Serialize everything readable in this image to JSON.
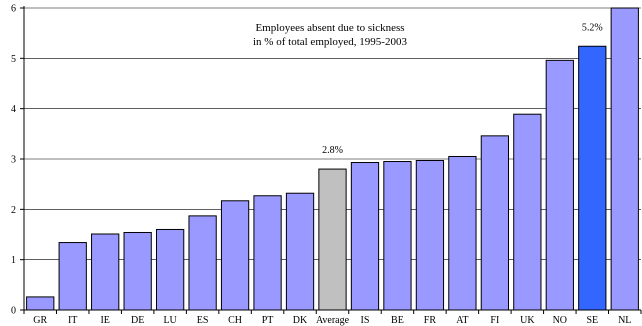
{
  "chart_data": {
    "type": "bar",
    "title": "Employees absent due to sickness",
    "subtitle": "in % of total employed, 1995-2003",
    "xlabel": "",
    "ylabel": "",
    "ylim": [
      0,
      6
    ],
    "yticks": [
      "0",
      "1",
      "2",
      "3",
      "4",
      "5",
      "6"
    ],
    "grid": true,
    "categories": [
      "GR",
      "IT",
      "IE",
      "DE",
      "LU",
      "ES",
      "CH",
      "PT",
      "DK",
      "Average",
      "IS",
      "BE",
      "FR",
      "AT",
      "FI",
      "UK",
      "NO",
      "SE",
      "NL"
    ],
    "values": [
      0.26,
      1.34,
      1.51,
      1.54,
      1.6,
      1.87,
      2.17,
      2.27,
      2.32,
      2.8,
      2.93,
      2.95,
      2.97,
      3.05,
      3.46,
      3.89,
      4.96,
      5.24,
      6.0
    ],
    "highlight": {
      "Average": "#c0c0c0",
      "SE": "#3366ff"
    },
    "default_color": "#9999ff",
    "data_labels": [
      {
        "category": "Average",
        "text": "2.8%"
      },
      {
        "category": "SE",
        "text": "5.2%"
      }
    ]
  }
}
